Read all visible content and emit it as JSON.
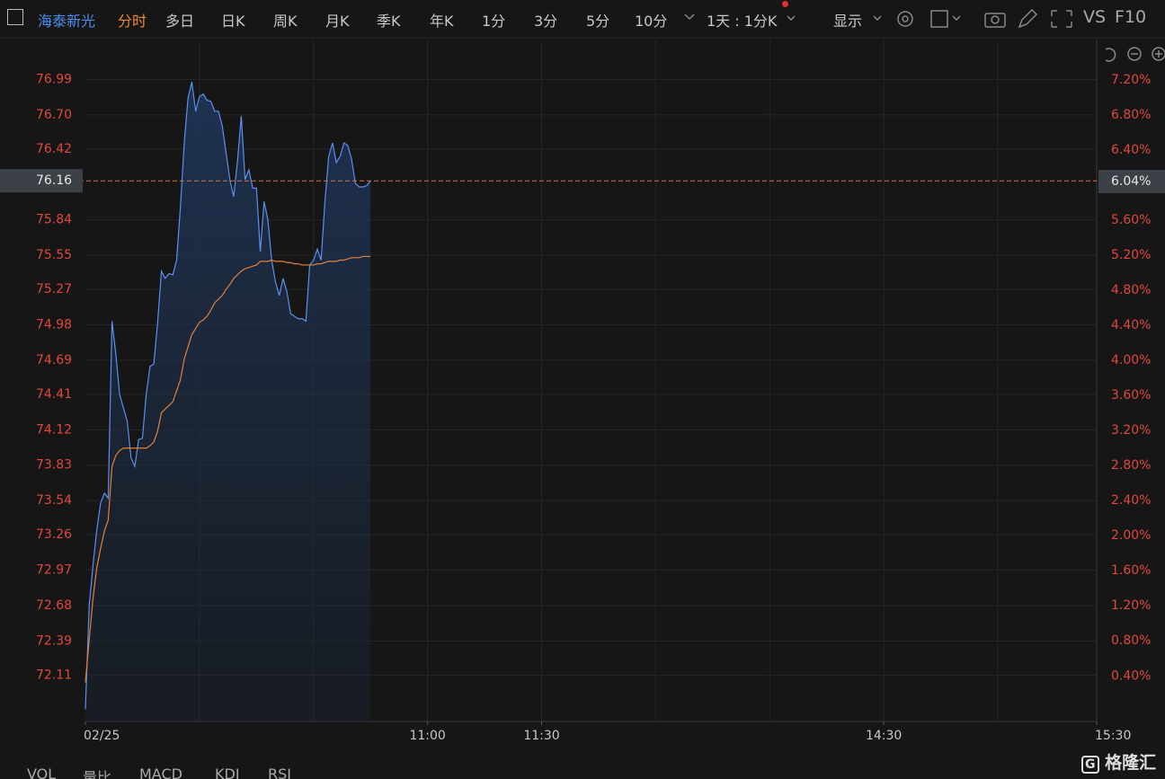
{
  "toolbar": {
    "stock": "海泰新光",
    "tabs": [
      "分时",
      "多日",
      "日K",
      "周K",
      "月K",
      "季K",
      "年K",
      "1分",
      "3分",
      "5分",
      "10分"
    ],
    "period": "1天 : 1分K",
    "display": "显示",
    "vs": "VS",
    "f10": "F10"
  },
  "indicator_tabs": [
    "VOL",
    "量比",
    "MACD",
    "KDJ",
    "RSI"
  ],
  "watermark": "格隆汇",
  "chart_data": {
    "type": "line",
    "x": [
      0,
      1,
      2,
      3,
      4,
      5,
      6,
      7,
      8,
      9,
      10,
      11,
      12,
      13,
      14,
      15,
      16,
      17,
      18,
      19,
      20,
      21,
      22,
      23,
      24,
      25,
      26,
      27,
      28,
      29,
      30,
      31,
      32,
      33,
      34,
      35,
      36,
      37,
      38,
      39,
      40,
      41,
      42,
      43,
      44,
      45,
      46,
      47,
      48,
      49,
      50,
      51,
      52,
      53,
      54,
      55,
      56,
      57,
      58,
      59,
      60,
      61,
      62,
      63,
      64,
      65,
      66,
      67,
      68,
      69,
      70,
      71,
      72,
      73,
      74,
      75
    ],
    "series": [
      {
        "name": "price",
        "color": "#5b8ff0",
        "fill": true,
        "values": [
          71.83,
          72.68,
          73.01,
          73.3,
          73.52,
          73.6,
          73.56,
          75.01,
          74.74,
          74.41,
          74.3,
          74.19,
          73.89,
          73.82,
          74.04,
          74.05,
          74.41,
          74.64,
          74.66,
          75.0,
          75.42,
          75.36,
          75.4,
          75.39,
          75.51,
          75.95,
          76.47,
          76.84,
          76.97,
          76.73,
          76.85,
          76.87,
          76.82,
          76.81,
          76.73,
          76.73,
          76.61,
          76.39,
          76.17,
          76.03,
          76.32,
          76.69,
          76.17,
          76.25,
          76.1,
          76.1,
          75.58,
          75.99,
          75.84,
          75.51,
          75.33,
          75.22,
          75.36,
          75.25,
          75.07,
          75.05,
          75.03,
          75.03,
          75.01,
          75.47,
          75.51,
          75.6,
          75.51,
          75.99,
          76.36,
          76.47,
          76.31,
          76.36,
          76.47,
          76.45,
          76.34,
          76.14,
          76.11,
          76.11,
          76.12,
          76.16
        ]
      },
      {
        "name": "average",
        "color": "#e0803a",
        "fill": false,
        "values": [
          72.05,
          72.4,
          72.74,
          72.99,
          73.15,
          73.29,
          73.38,
          73.82,
          73.91,
          73.95,
          73.97,
          73.97,
          73.97,
          73.97,
          73.97,
          73.97,
          73.97,
          73.99,
          74.02,
          74.11,
          74.26,
          74.29,
          74.32,
          74.35,
          74.44,
          74.53,
          74.7,
          74.8,
          74.9,
          74.95,
          75.0,
          75.02,
          75.05,
          75.1,
          75.16,
          75.19,
          75.22,
          75.27,
          75.31,
          75.36,
          75.39,
          75.42,
          75.44,
          75.45,
          75.46,
          75.47,
          75.5,
          75.5,
          75.5,
          75.51,
          75.5,
          75.5,
          75.5,
          75.49,
          75.49,
          75.48,
          75.48,
          75.47,
          75.47,
          75.47,
          75.47,
          75.48,
          75.48,
          75.49,
          75.5,
          75.5,
          75.5,
          75.51,
          75.51,
          75.52,
          75.53,
          75.53,
          75.53,
          75.54,
          75.54,
          75.54
        ]
      }
    ],
    "xlim": [
      0,
      266
    ],
    "xticks": [
      {
        "value": 0,
        "label": "02/25"
      },
      {
        "value": 90,
        "label": "11:00"
      },
      {
        "value": 120,
        "label": "11:30"
      },
      {
        "value": 210,
        "label": "14:30"
      },
      {
        "value": 266,
        "label": "15:30"
      }
    ],
    "xgrid": [
      30,
      60,
      90,
      120,
      150,
      180,
      210,
      240
    ],
    "ylim": [
      71.73,
      77.31
    ],
    "yticks": [
      76.99,
      {
        "value": 76.7,
        "label": "76.70"
      },
      76.42,
      75.84,
      75.55,
      75.27,
      74.98,
      74.69,
      74.41,
      74.12,
      73.83,
      73.54,
      73.26,
      72.97,
      72.68,
      72.39,
      72.11
    ],
    "y2lim": [
      -0.12,
      7.65
    ],
    "y2ticks": [
      {
        "value": 7.2,
        "label": "7.20%"
      },
      {
        "value": 6.8,
        "label": "6.80%"
      },
      {
        "value": 6.4,
        "label": "6.40%"
      },
      {
        "value": 5.6,
        "label": "5.60%"
      },
      {
        "value": 5.2,
        "label": "5.20%"
      },
      {
        "value": 4.8,
        "label": "4.80%"
      },
      {
        "value": 4.4,
        "label": "4.40%"
      },
      {
        "value": 4.0,
        "label": "4.00%"
      },
      {
        "value": 3.6,
        "label": "3.60%"
      },
      {
        "value": 3.2,
        "label": "3.20%"
      },
      {
        "value": 2.8,
        "label": "2.80%"
      },
      {
        "value": 2.4,
        "label": "2.40%"
      },
      {
        "value": 2.0,
        "label": "2.00%"
      },
      {
        "value": 1.6,
        "label": "1.60%"
      },
      {
        "value": 1.2,
        "label": "1.20%"
      },
      {
        "value": 0.8,
        "label": "0.80%"
      },
      {
        "value": 0.4,
        "label": "0.40%"
      }
    ],
    "current": {
      "value": 76.16,
      "label": "76.16"
    },
    "current_pct": {
      "value": 6.04,
      "label": "6.04%"
    },
    "grid": true
  }
}
